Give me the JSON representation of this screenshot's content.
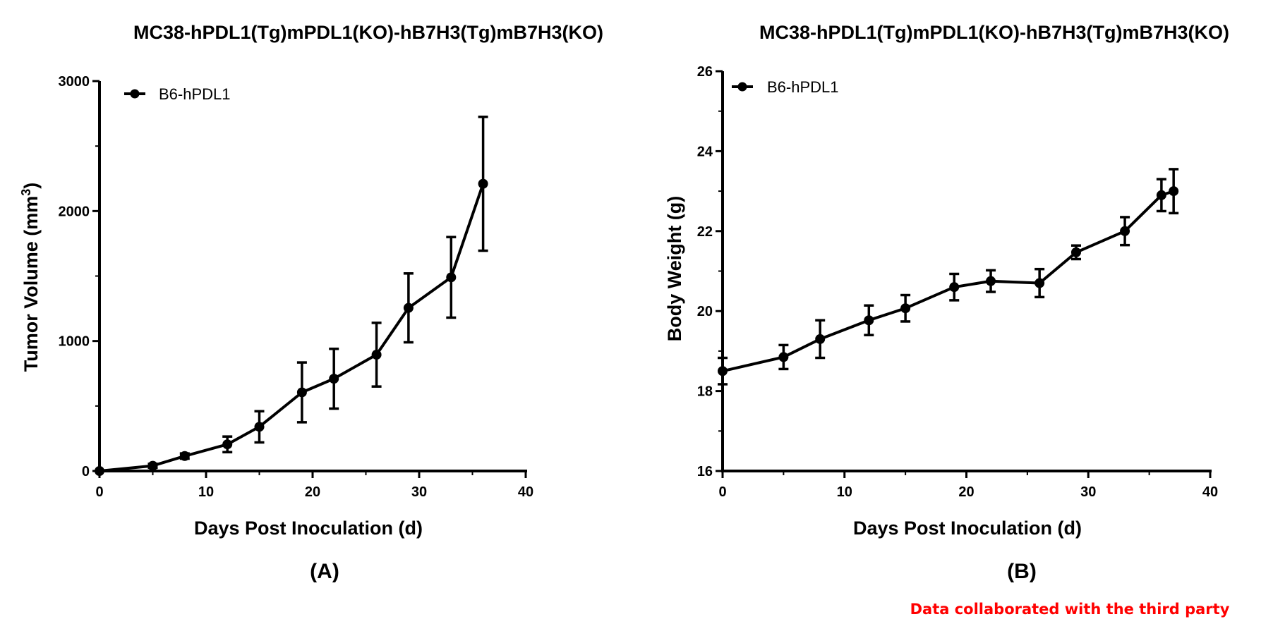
{
  "chart_data": [
    {
      "type": "line",
      "panel_label": "(A)",
      "title": "MC38-hPDL1(Tg)mPDL1(KO)-hB7H3(Tg)mB7H3(KO)",
      "xlabel": "Days Post Inoculation (d)",
      "ylabel": "Tumor Volume (mm",
      "ylabel_superscript": "3",
      "ylabel_close": ")",
      "xlim": [
        0,
        40
      ],
      "ylim": [
        0,
        3000
      ],
      "xticks": [
        "0",
        "10",
        "20",
        "30",
        "40"
      ],
      "yticks": [
        "0",
        "1000",
        "2000",
        "3000"
      ],
      "legend_position": "top-left",
      "series": [
        {
          "name": "B6-hPDL1",
          "color": "#000000",
          "x": [
            0,
            5,
            8,
            12,
            15,
            19,
            22,
            26,
            29,
            33,
            36
          ],
          "y": [
            0,
            40,
            115,
            205,
            340,
            605,
            710,
            895,
            1255,
            1490,
            2210
          ],
          "err": [
            0,
            15,
            20,
            60,
            120,
            230,
            230,
            245,
            265,
            310,
            515
          ]
        }
      ]
    },
    {
      "type": "line",
      "panel_label": "(B)",
      "title": "MC38-hPDL1(Tg)mPDL1(KO)-hB7H3(Tg)mB7H3(KO)",
      "xlabel": "Days Post Inoculation (d)",
      "ylabel": "Body Weight (g)",
      "xlim": [
        0,
        40
      ],
      "ylim": [
        16,
        26
      ],
      "xticks": [
        "0",
        "10",
        "20",
        "30",
        "40"
      ],
      "yticks": [
        "16",
        "18",
        "20",
        "22",
        "24",
        "26"
      ],
      "legend_position": "top-left",
      "series": [
        {
          "name": "B6-hPDL1",
          "color": "#000000",
          "x": [
            0,
            5,
            8,
            12,
            15,
            19,
            22,
            26,
            29,
            33,
            36,
            37
          ],
          "y": [
            18.5,
            18.85,
            19.3,
            19.77,
            20.07,
            20.6,
            20.75,
            20.7,
            21.47,
            22.0,
            22.9,
            23.0
          ],
          "err": [
            0.33,
            0.3,
            0.47,
            0.37,
            0.33,
            0.33,
            0.27,
            0.35,
            0.17,
            0.35,
            0.4,
            0.55
          ]
        }
      ]
    }
  ],
  "footer": {
    "credit": "Data collaborated with the third party",
    "credit_color": "#ff0000"
  }
}
